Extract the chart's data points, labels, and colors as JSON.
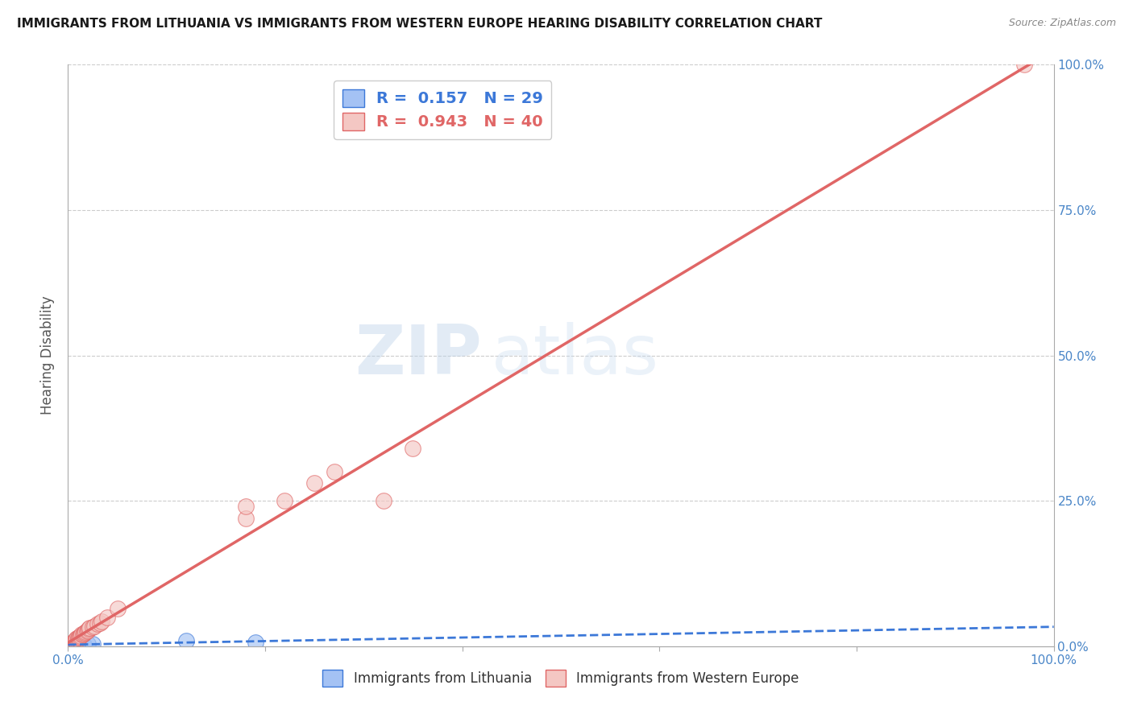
{
  "title": "IMMIGRANTS FROM LITHUANIA VS IMMIGRANTS FROM WESTERN EUROPE HEARING DISABILITY CORRELATION CHART",
  "source": "Source: ZipAtlas.com",
  "ylabel_left": "Hearing Disability",
  "watermark_zip": "ZIP",
  "watermark_atlas": "atlas",
  "blue_R": 0.157,
  "blue_N": 29,
  "pink_R": 0.943,
  "pink_N": 40,
  "blue_color": "#a4c2f4",
  "pink_color": "#f4c7c3",
  "blue_line_color": "#3c78d8",
  "pink_line_color": "#e06666",
  "legend_label_blue": "Immigrants from Lithuania",
  "legend_label_pink": "Immigrants from Western Europe",
  "blue_x": [
    0.001,
    0.002,
    0.002,
    0.003,
    0.003,
    0.003,
    0.004,
    0.004,
    0.004,
    0.005,
    0.005,
    0.005,
    0.006,
    0.006,
    0.007,
    0.007,
    0.008,
    0.009,
    0.01,
    0.01,
    0.011,
    0.012,
    0.013,
    0.015,
    0.016,
    0.02,
    0.025,
    0.12,
    0.19
  ],
  "blue_y": [
    0.001,
    0.002,
    0.003,
    0.001,
    0.002,
    0.004,
    0.001,
    0.003,
    0.004,
    0.002,
    0.003,
    0.004,
    0.002,
    0.004,
    0.002,
    0.003,
    0.003,
    0.003,
    0.002,
    0.004,
    0.003,
    0.003,
    0.004,
    0.003,
    0.003,
    0.004,
    0.004,
    0.01,
    0.006
  ],
  "pink_x": [
    0.002,
    0.003,
    0.004,
    0.005,
    0.005,
    0.006,
    0.007,
    0.007,
    0.008,
    0.008,
    0.009,
    0.01,
    0.01,
    0.011,
    0.012,
    0.013,
    0.014,
    0.015,
    0.016,
    0.017,
    0.018,
    0.019,
    0.02,
    0.021,
    0.022,
    0.025,
    0.027,
    0.03,
    0.032,
    0.034,
    0.04,
    0.05,
    0.18,
    0.22,
    0.27,
    0.32,
    0.18,
    0.25,
    0.35,
    0.97
  ],
  "pink_y": [
    0.002,
    0.003,
    0.004,
    0.005,
    0.007,
    0.006,
    0.008,
    0.009,
    0.01,
    0.012,
    0.013,
    0.012,
    0.015,
    0.015,
    0.017,
    0.018,
    0.02,
    0.021,
    0.022,
    0.023,
    0.025,
    0.026,
    0.028,
    0.03,
    0.031,
    0.033,
    0.035,
    0.038,
    0.04,
    0.042,
    0.05,
    0.065,
    0.22,
    0.25,
    0.3,
    0.25,
    0.24,
    0.28,
    0.34,
    1.0
  ],
  "grid_color": "#cccccc",
  "background_color": "#ffffff",
  "title_color": "#1a1a1a",
  "source_color": "#888888",
  "tick_color": "#4a86c8"
}
